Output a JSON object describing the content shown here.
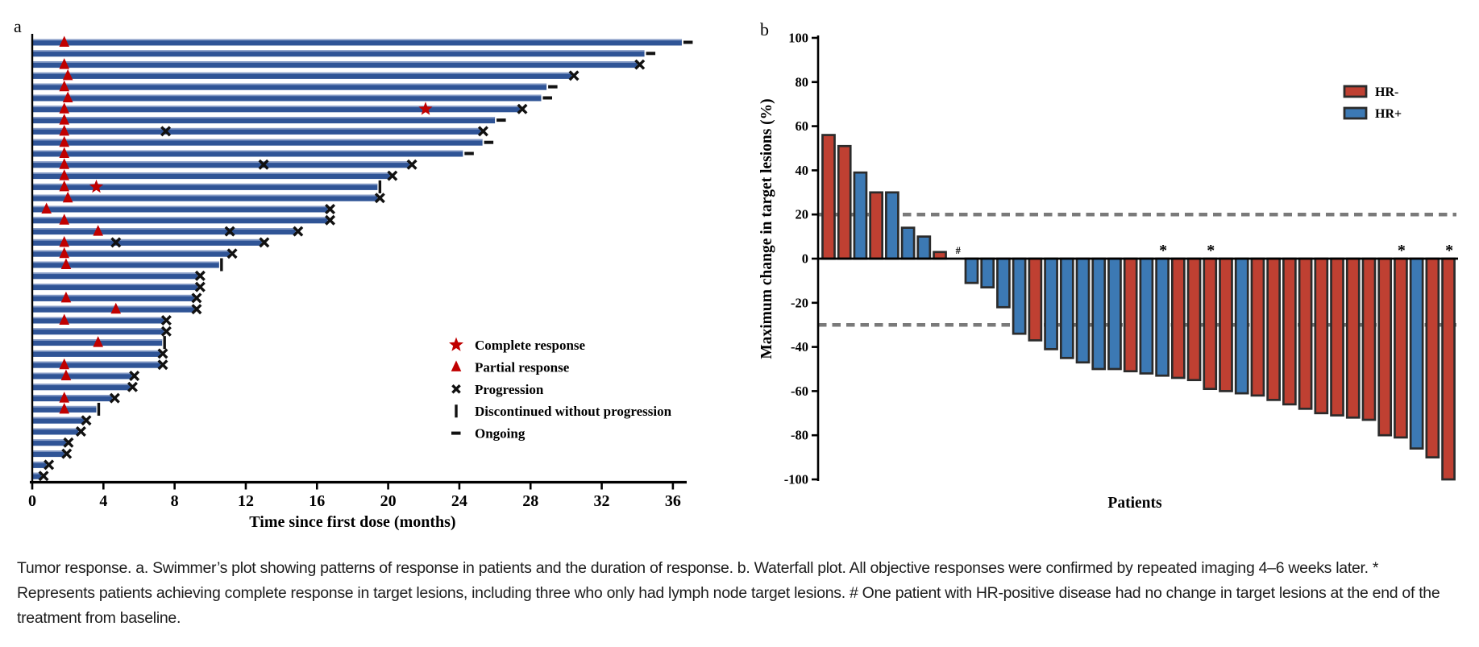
{
  "figure": {
    "panel_a_label": "a",
    "panel_b_label": "b",
    "caption": "Tumor response. a. Swimmer’s plot showing patterns of response in patients and the duration of response. b. Waterfall plot. All objective responses were confirmed by repeated imaging 4–6 weeks later. * Represents patients achieving complete response in target lesions, including three who only had lymph node target lesions. # One patient with HR-positive disease had no change in target lesions at the end of the treatment from baseline."
  },
  "colors": {
    "swimmer_bar": "#2F5496",
    "swimmer_bar_highlight": "#93A7CE",
    "red": "#BF4032",
    "blue": "#3C79B4",
    "bar_outline": "#2B2B2B",
    "marker_red": "#C00000",
    "marker_black": "#111111",
    "dashed_line": "#7A7A7A",
    "axis": "#000000"
  },
  "chart_data": [
    {
      "type": "swimmer",
      "panel": "a",
      "xlabel": "Time since first dose (months)",
      "x_ticks": [
        0,
        4,
        8,
        12,
        16,
        20,
        24,
        28,
        32,
        36
      ],
      "xlim": [
        0,
        36.7
      ],
      "legend": [
        {
          "marker": "star",
          "label": "Complete response"
        },
        {
          "marker": "triangle",
          "label": "Partial response"
        },
        {
          "marker": "x",
          "label": "Progression"
        },
        {
          "marker": "bar",
          "label": "Discontinued without progression"
        },
        {
          "marker": "dash",
          "label": "Ongoing"
        }
      ],
      "patients": [
        {
          "d": 36.5,
          "end": "ongoing",
          "pr": [
            1.8
          ]
        },
        {
          "d": 34.4,
          "end": "ongoing"
        },
        {
          "d": 34.0,
          "end": "progression",
          "pr": [
            1.8
          ]
        },
        {
          "d": 30.3,
          "end": "progression",
          "pr": [
            2.0
          ]
        },
        {
          "d": 28.9,
          "end": "ongoing",
          "pr": [
            1.8
          ]
        },
        {
          "d": 28.6,
          "end": "ongoing",
          "pr": [
            2.0
          ]
        },
        {
          "d": 27.4,
          "end": "progression",
          "pr": [
            1.8
          ],
          "cr": [
            22.1
          ]
        },
        {
          "d": 26.0,
          "end": "ongoing",
          "pr": [
            1.8
          ]
        },
        {
          "d": 25.2,
          "end": "progression",
          "pr": [
            1.8
          ],
          "x": [
            7.5
          ]
        },
        {
          "d": 25.3,
          "end": "ongoing",
          "pr": [
            1.8
          ]
        },
        {
          "d": 24.2,
          "end": "ongoing",
          "pr": [
            1.8
          ]
        },
        {
          "d": 21.2,
          "end": "progression",
          "pr": [
            1.8
          ],
          "x": [
            13.0
          ]
        },
        {
          "d": 20.1,
          "end": "progression",
          "pr": [
            1.8
          ]
        },
        {
          "d": 19.4,
          "end": "discontinued",
          "pr": [
            1.8
          ],
          "cr": [
            3.6
          ]
        },
        {
          "d": 19.4,
          "end": "progression",
          "pr": [
            2.0
          ]
        },
        {
          "d": 16.6,
          "end": "progression",
          "pr": [
            0.8
          ]
        },
        {
          "d": 16.6,
          "end": "progression",
          "pr": [
            1.8
          ]
        },
        {
          "d": 14.8,
          "end": "progression",
          "pr": [
            3.7
          ],
          "x": [
            11.1
          ]
        },
        {
          "d": 12.9,
          "end": "progression",
          "pr": [
            1.8
          ],
          "x": [
            4.7
          ]
        },
        {
          "d": 11.1,
          "end": "progression",
          "pr": [
            1.8
          ]
        },
        {
          "d": 10.5,
          "end": "discontinued",
          "pr": [
            1.9
          ]
        },
        {
          "d": 9.3,
          "end": "progression"
        },
        {
          "d": 9.3,
          "end": "progression"
        },
        {
          "d": 9.1,
          "end": "progression",
          "pr": [
            1.9
          ]
        },
        {
          "d": 9.1,
          "end": "progression",
          "pr": [
            4.7
          ]
        },
        {
          "d": 7.4,
          "end": "progression",
          "pr": [
            1.8
          ]
        },
        {
          "d": 7.4,
          "end": "progression"
        },
        {
          "d": 7.3,
          "end": "discontinued",
          "pr": [
            3.7
          ]
        },
        {
          "d": 7.2,
          "end": "progression"
        },
        {
          "d": 7.2,
          "end": "progression",
          "pr": [
            1.8
          ]
        },
        {
          "d": 5.6,
          "end": "progression",
          "pr": [
            1.9
          ]
        },
        {
          "d": 5.5,
          "end": "progression"
        },
        {
          "d": 4.5,
          "end": "progression",
          "pr": [
            1.8
          ]
        },
        {
          "d": 3.6,
          "end": "discontinued",
          "pr": [
            1.8
          ]
        },
        {
          "d": 2.9,
          "end": "progression"
        },
        {
          "d": 2.6,
          "end": "progression"
        },
        {
          "d": 1.9,
          "end": "progression"
        },
        {
          "d": 1.8,
          "end": "progression"
        },
        {
          "d": 0.8,
          "end": "progression"
        },
        {
          "d": 0.5,
          "end": "progression"
        }
      ]
    },
    {
      "type": "waterfall",
      "panel": "b",
      "ylabel": "Maximum change in target lesions (%)",
      "xlabel": "Patients",
      "ylim": [
        -100,
        100
      ],
      "ytick_step": 20,
      "reference_lines": [
        20,
        -30
      ],
      "annotations": {
        "star": "*",
        "hash": "#"
      },
      "legend": [
        {
          "label": "HR-",
          "color_key": "red"
        },
        {
          "label": "HR+",
          "color_key": "blue"
        }
      ],
      "patients": [
        {
          "value": 56,
          "group": "HR-"
        },
        {
          "value": 51,
          "group": "HR-"
        },
        {
          "value": 39,
          "group": "HR+"
        },
        {
          "value": 30,
          "group": "HR-"
        },
        {
          "value": 30,
          "group": "HR+"
        },
        {
          "value": 14,
          "group": "HR+"
        },
        {
          "value": 10,
          "group": "HR+"
        },
        {
          "value": 3,
          "group": "HR-"
        },
        {
          "value": 0,
          "group": "HR+",
          "hash": true
        },
        {
          "value": -11,
          "group": "HR+"
        },
        {
          "value": -13,
          "group": "HR+"
        },
        {
          "value": -22,
          "group": "HR+"
        },
        {
          "value": -34,
          "group": "HR+"
        },
        {
          "value": -37,
          "group": "HR-"
        },
        {
          "value": -41,
          "group": "HR+"
        },
        {
          "value": -45,
          "group": "HR+"
        },
        {
          "value": -47,
          "group": "HR+"
        },
        {
          "value": -50,
          "group": "HR+"
        },
        {
          "value": -50,
          "group": "HR+"
        },
        {
          "value": -51,
          "group": "HR-"
        },
        {
          "value": -52,
          "group": "HR+"
        },
        {
          "value": -53,
          "group": "HR+",
          "star": true
        },
        {
          "value": -54,
          "group": "HR-"
        },
        {
          "value": -55,
          "group": "HR-"
        },
        {
          "value": -59,
          "group": "HR-",
          "star": true
        },
        {
          "value": -60,
          "group": "HR-"
        },
        {
          "value": -61,
          "group": "HR+"
        },
        {
          "value": -62,
          "group": "HR-"
        },
        {
          "value": -64,
          "group": "HR-"
        },
        {
          "value": -66,
          "group": "HR-"
        },
        {
          "value": -68,
          "group": "HR-"
        },
        {
          "value": -70,
          "group": "HR-"
        },
        {
          "value": -71,
          "group": "HR-"
        },
        {
          "value": -72,
          "group": "HR-"
        },
        {
          "value": -73,
          "group": "HR-"
        },
        {
          "value": -80,
          "group": "HR-"
        },
        {
          "value": -81,
          "group": "HR-",
          "star": true
        },
        {
          "value": -86,
          "group": "HR+"
        },
        {
          "value": -90,
          "group": "HR-"
        },
        {
          "value": -100,
          "group": "HR-",
          "star": true
        }
      ]
    }
  ]
}
